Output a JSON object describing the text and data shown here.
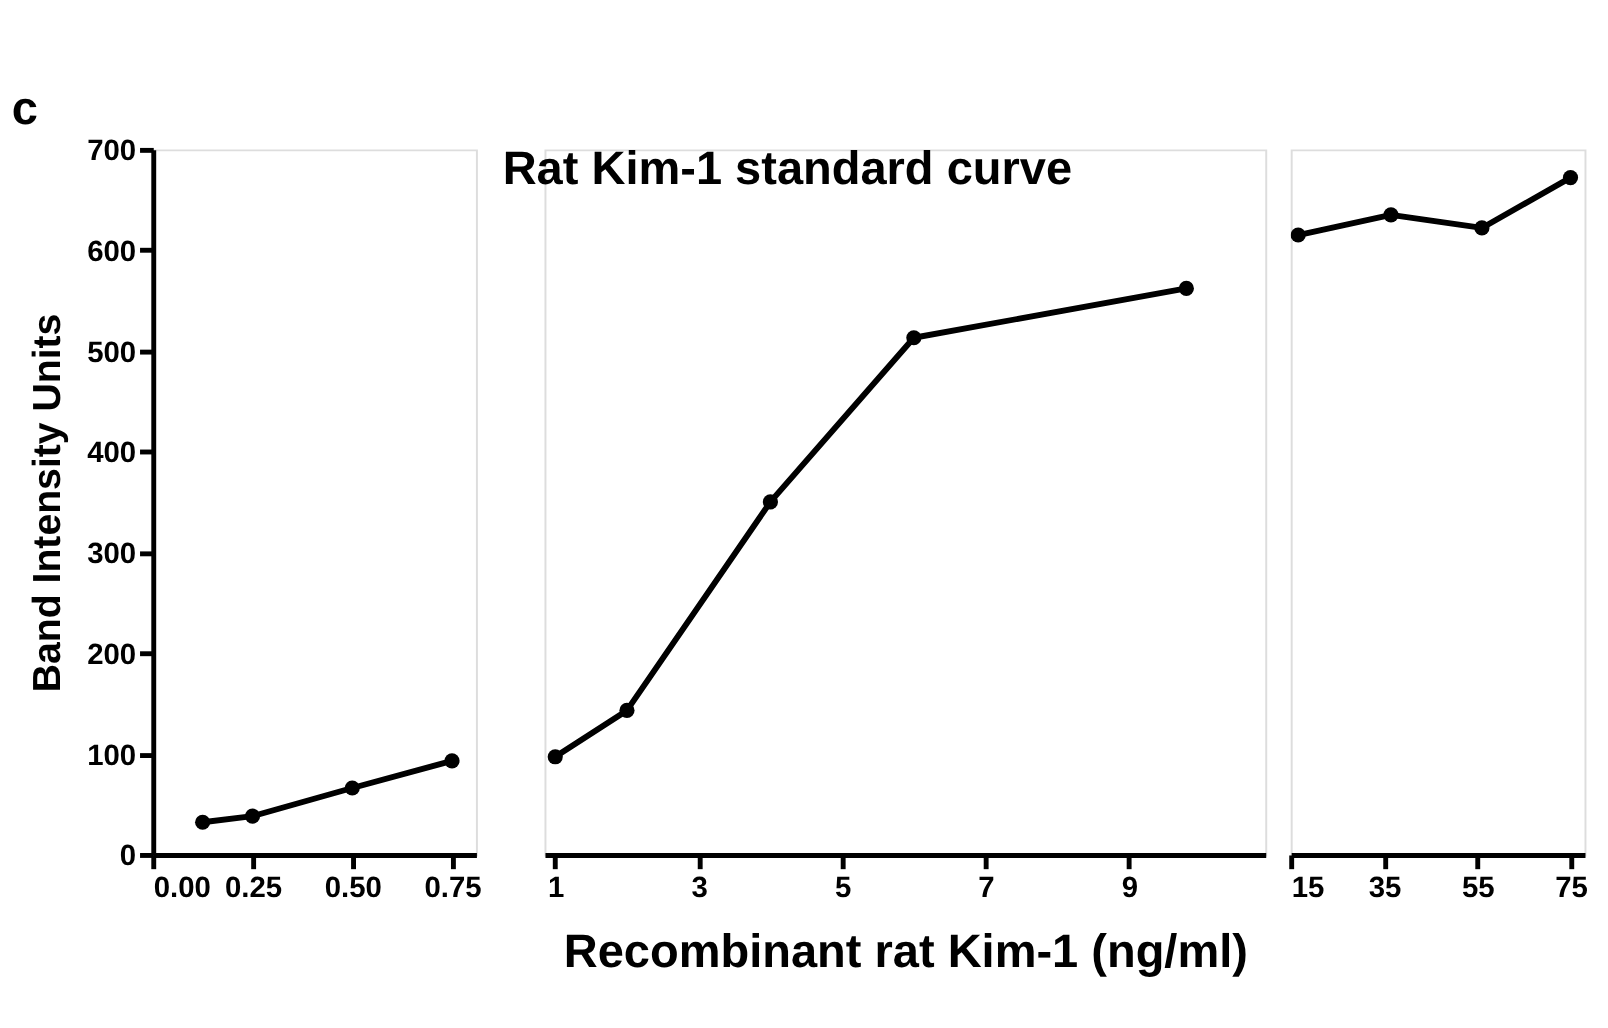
{
  "chart_data": [
    {
      "type": "line",
      "annotations": [
        "c"
      ],
      "ylabel": "Band Intensity Units",
      "x": [
        0.125,
        0.25,
        0.5,
        0.75
      ],
      "xlim": [
        0,
        0.81
      ],
      "xticks": [
        {
          "value": 0,
          "label": "0.00"
        },
        {
          "value": 0.25,
          "label": "0.25"
        },
        {
          "value": 0.5,
          "label": "0.50"
        },
        {
          "value": 0.75,
          "label": "0.75"
        }
      ],
      "ylim": [
        0,
        700
      ],
      "yticks": [
        0,
        100,
        200,
        300,
        400,
        500,
        600,
        700
      ],
      "grid": false,
      "marker": "circle",
      "line_style": "solid",
      "series": [
        {
          "color": "#000000",
          "values": [
            32,
            38,
            66,
            93
          ]
        }
      ]
    },
    {
      "type": "line",
      "title": "Rat Kim-1 standard curve",
      "xlabel": "Recombinant rat Kim-1 (ng/ml)",
      "x": [
        1,
        2,
        4,
        6,
        9.8
      ],
      "xlim": [
        0.85,
        10.9
      ],
      "xticks": [
        1,
        3,
        5,
        7,
        9
      ],
      "ylim": [
        0,
        700
      ],
      "tick_labels": "x",
      "grid": false,
      "marker": "circle",
      "line_style": "solid",
      "series": [
        {
          "color": "#000000",
          "values": [
            97,
            143,
            350,
            513,
            562
          ]
        }
      ]
    },
    {
      "type": "line",
      "x": [
        16.6,
        36.5,
        56,
        75
      ],
      "xlim": [
        15,
        78
      ],
      "xticks": [
        15,
        35,
        55,
        75
      ],
      "ylim": [
        0,
        700
      ],
      "tick_labels": "x",
      "grid": false,
      "marker": "circle",
      "line_style": "solid",
      "series": [
        {
          "color": "#000000",
          "values": [
            615,
            635,
            622,
            672
          ]
        }
      ]
    }
  ]
}
